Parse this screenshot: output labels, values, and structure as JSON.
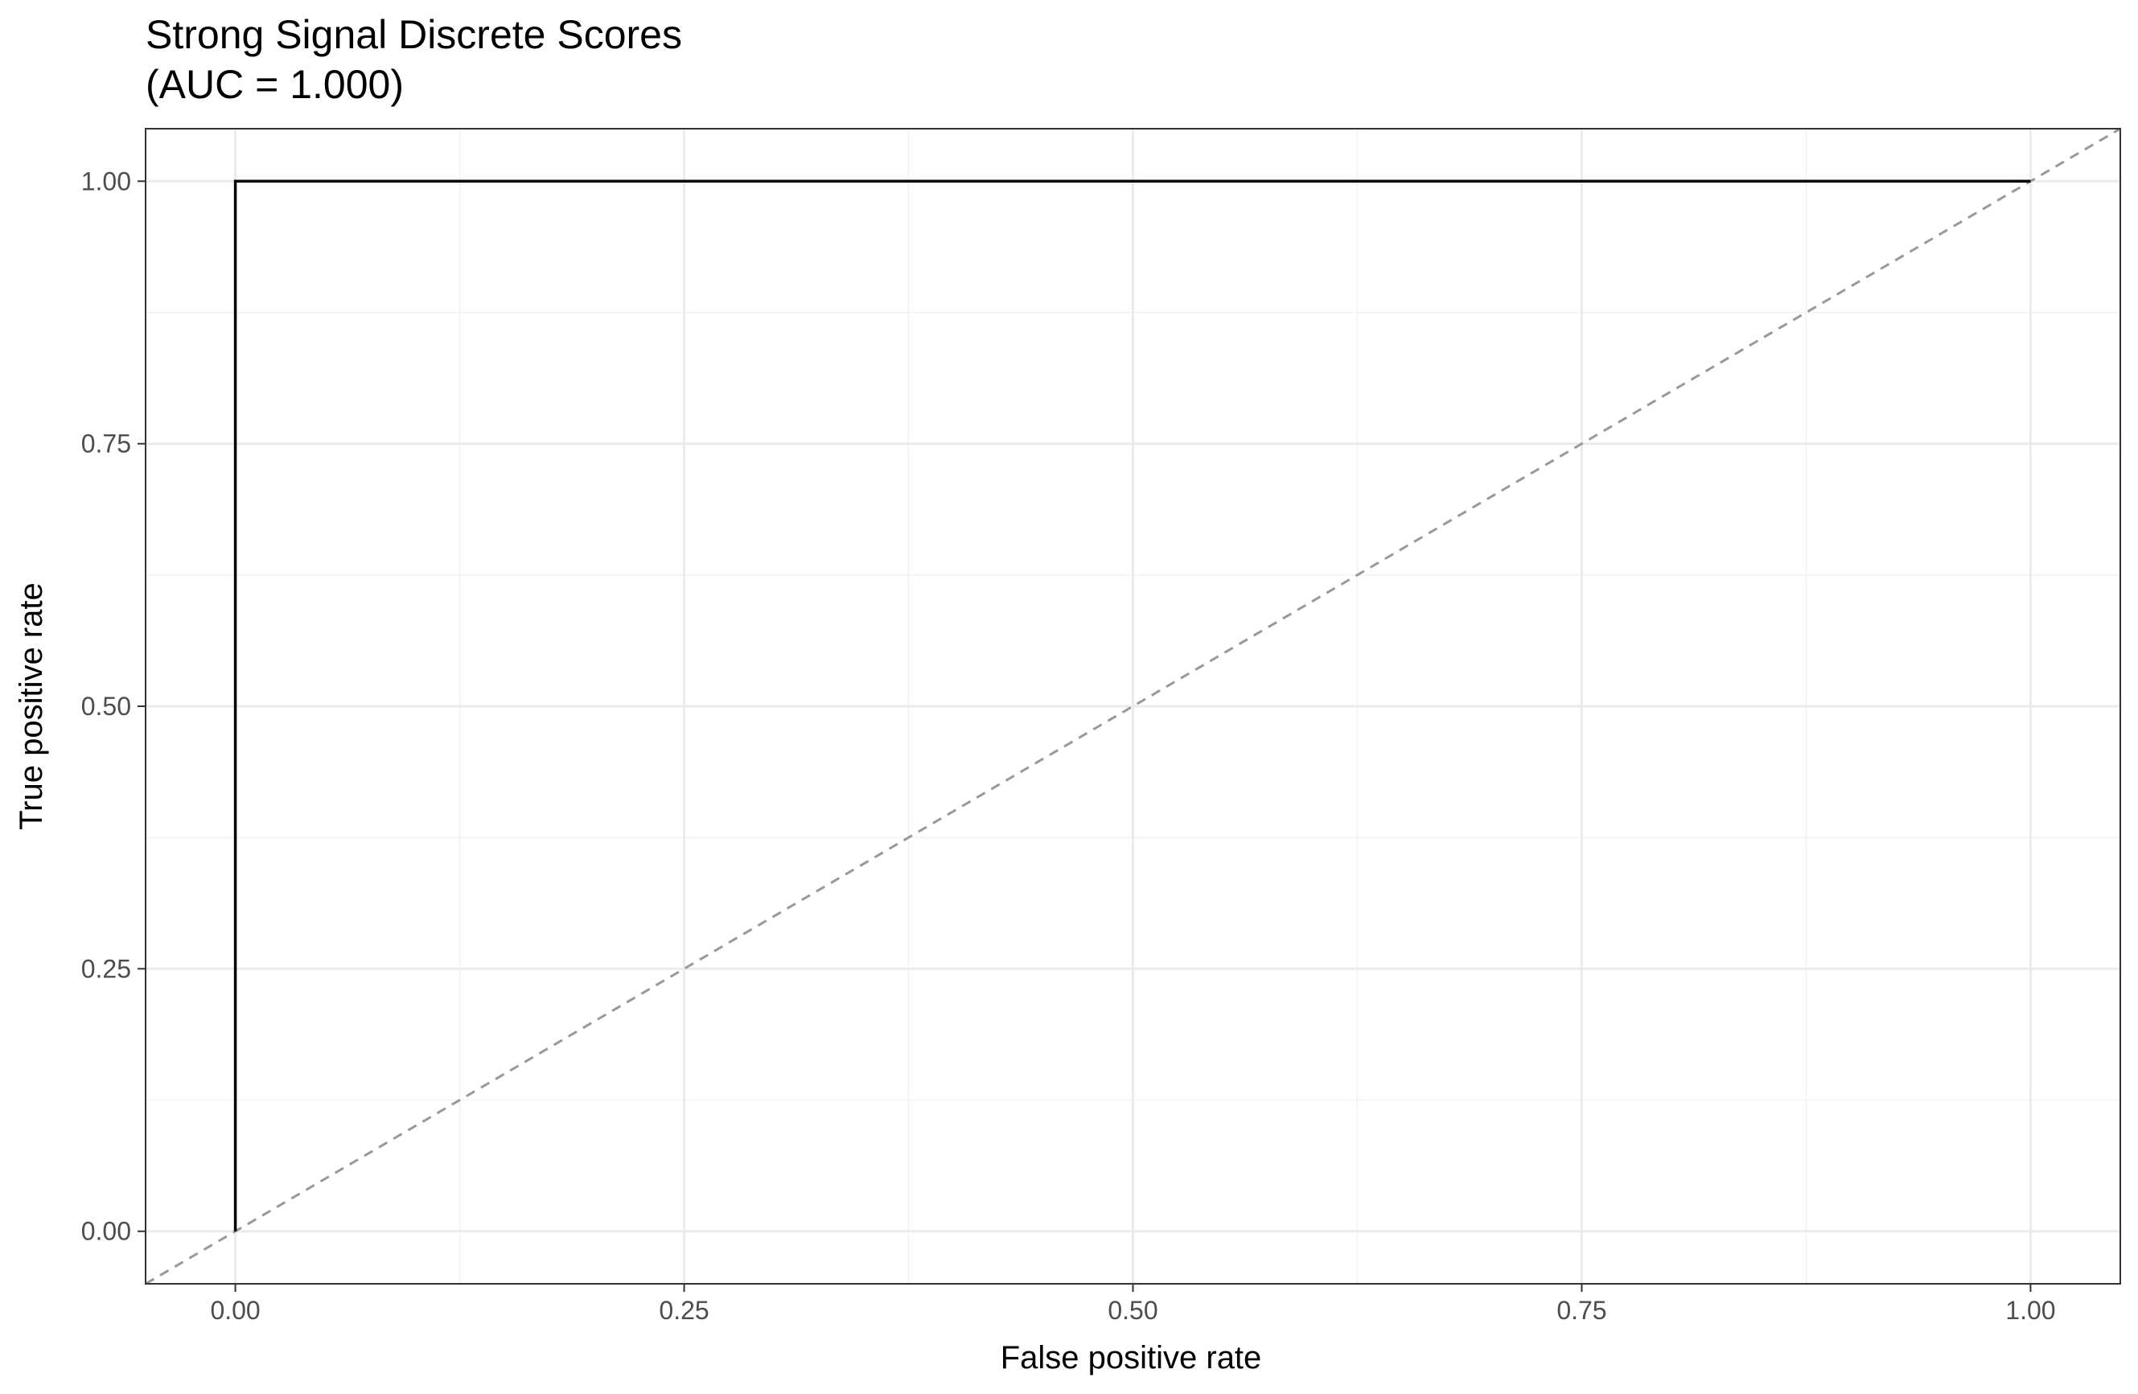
{
  "chart_data": {
    "type": "line",
    "title": "Strong Signal Discrete Scores",
    "subtitle": "(AUC = 1.000)",
    "xlabel": "False positive rate",
    "ylabel": "True positive rate",
    "xlim": [
      -0.05,
      1.05
    ],
    "ylim": [
      -0.05,
      1.05
    ],
    "x_ticks": [
      0,
      0.25,
      0.5,
      0.75,
      1
    ],
    "x_tick_labels": [
      "0.00",
      "0.25",
      "0.50",
      "0.75",
      "1.00"
    ],
    "y_ticks": [
      0,
      0.25,
      0.5,
      0.75,
      1
    ],
    "y_tick_labels": [
      "0.00",
      "0.25",
      "0.50",
      "0.75",
      "1.00"
    ],
    "grid": true,
    "series": [
      {
        "x": [
          0,
          0,
          1
        ],
        "y": [
          0,
          1,
          1
        ],
        "color": "#000000",
        "style": "solid"
      }
    ],
    "reference_line": {
      "x": [
        -0.05,
        1.05
      ],
      "y": [
        -0.05,
        1.05
      ],
      "color": "#999999",
      "style": "dashed"
    },
    "colors": {
      "panel_border": "#333333",
      "major_grid": "#ebebeb",
      "minor_grid": "#f2f2f2",
      "tick_text": "#4d4d4d"
    }
  }
}
